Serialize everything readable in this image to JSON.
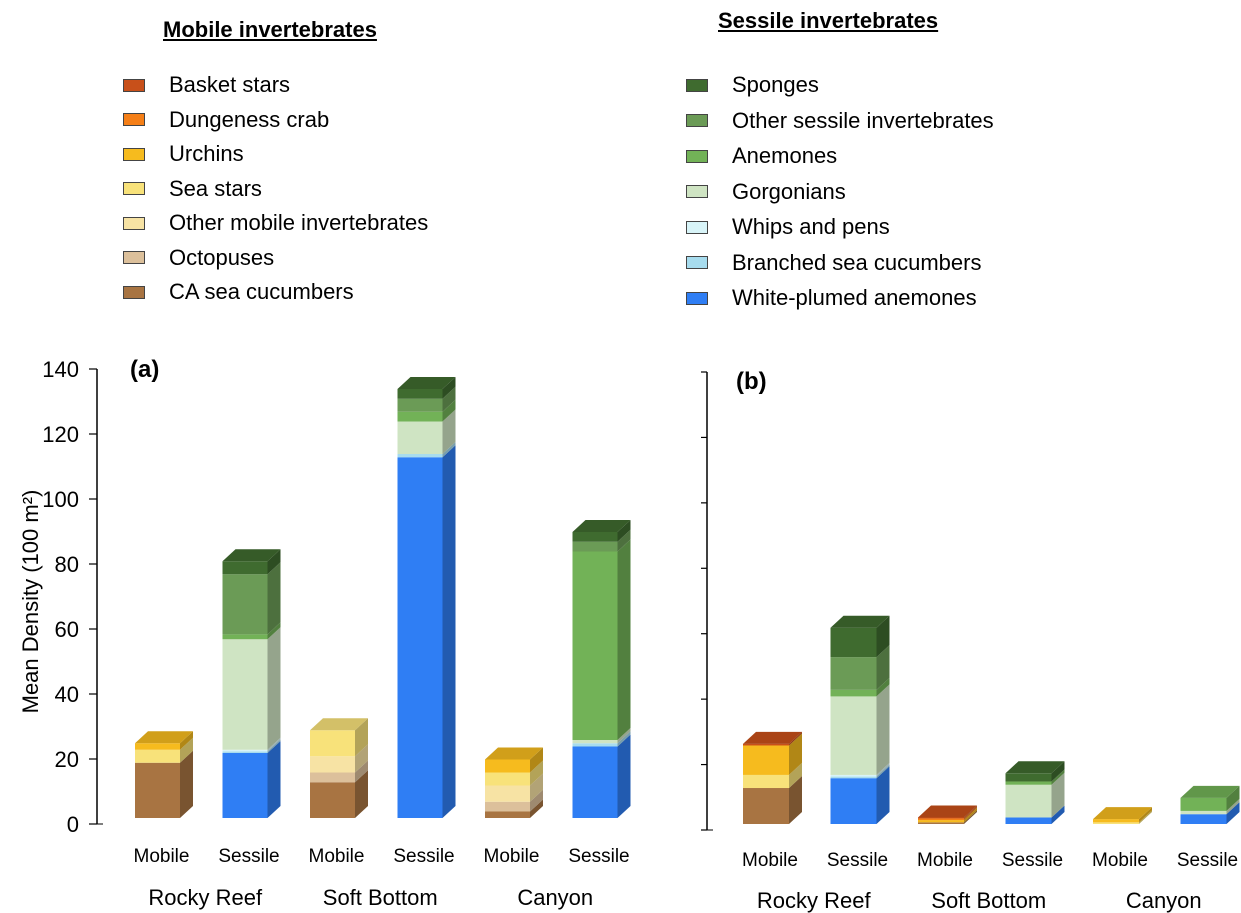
{
  "legends": {
    "mobile": {
      "title": "Mobile invertebrates",
      "items": [
        {
          "label": "Basket stars",
          "color": "#c8501a"
        },
        {
          "label": "Dungeness crab",
          "color": "#f57f17"
        },
        {
          "label": "Urchins",
          "color": "#f6bb1e"
        },
        {
          "label": "Sea stars",
          "color": "#f8e27a"
        },
        {
          "label": "Other mobile invertebrates",
          "color": "#f7e3a4"
        },
        {
          "label": "Octopuses",
          "color": "#dcc09b"
        },
        {
          "label": "CA sea cucumbers",
          "color": "#a87442"
        }
      ]
    },
    "sessile": {
      "title": "Sessile invertebrates",
      "items": [
        {
          "label": "Sponges",
          "color": "#3f6b2f"
        },
        {
          "label": "Other sessile invertebrates",
          "color": "#6b9b56"
        },
        {
          "label": "Anemones",
          "color": "#72b257"
        },
        {
          "label": "Gorgonians",
          "color": "#cfe4c3"
        },
        {
          "label": "Whips and pens",
          "color": "#d8f4f8"
        },
        {
          "label": "Branched sea cucumbers",
          "color": "#a7dcee"
        },
        {
          "label": "White-plumed anemones",
          "color": "#2f7ef4"
        }
      ]
    }
  },
  "chart_data": [
    {
      "type": "bar",
      "stacked": true,
      "panel_label": "(a)",
      "ylabel": "Mean Density (100 m²)",
      "ylim": [
        0,
        140
      ],
      "yticks": [
        0,
        20,
        40,
        60,
        80,
        100,
        120,
        140
      ],
      "show_tick_labels": true,
      "groups": [
        "Rocky Reef",
        "Soft Bottom",
        "Canyon"
      ],
      "bars": [
        {
          "group": "Rocky Reef",
          "label": "Mobile",
          "segments": [
            {
              "name": "CA sea cucumbers",
              "value": 17
            },
            {
              "name": "Sea stars",
              "value": 4
            },
            {
              "name": "Urchins",
              "value": 2
            }
          ]
        },
        {
          "group": "Rocky Reef",
          "label": "Sessile",
          "segments": [
            {
              "name": "White-plumed anemones",
              "value": 20
            },
            {
              "name": "Branched sea cucumbers",
              "value": 0.5
            },
            {
              "name": "Whips and pens",
              "value": 0.5
            },
            {
              "name": "Gorgonians",
              "value": 34
            },
            {
              "name": "Anemones",
              "value": 1.5
            },
            {
              "name": "Other sessile invertebrates",
              "value": 18.5
            },
            {
              "name": "Sponges",
              "value": 4
            }
          ]
        },
        {
          "group": "Soft Bottom",
          "label": "Mobile",
          "segments": [
            {
              "name": "CA sea cucumbers",
              "value": 11
            },
            {
              "name": "Octopuses",
              "value": 3
            },
            {
              "name": "Other mobile invertebrates",
              "value": 5
            },
            {
              "name": "Sea stars",
              "value": 8
            }
          ]
        },
        {
          "group": "Soft Bottom",
          "label": "Sessile",
          "segments": [
            {
              "name": "White-plumed anemones",
              "value": 111
            },
            {
              "name": "Branched sea cucumbers",
              "value": 1
            },
            {
              "name": "Gorgonians",
              "value": 10
            },
            {
              "name": "Anemones",
              "value": 3
            },
            {
              "name": "Other sessile invertebrates",
              "value": 4
            },
            {
              "name": "Sponges",
              "value": 3
            }
          ]
        },
        {
          "group": "Canyon",
          "label": "Mobile",
          "segments": [
            {
              "name": "CA sea cucumbers",
              "value": 2
            },
            {
              "name": "Octopuses",
              "value": 3
            },
            {
              "name": "Other mobile invertebrates",
              "value": 5
            },
            {
              "name": "Sea stars",
              "value": 4
            },
            {
              "name": "Urchins",
              "value": 4
            }
          ]
        },
        {
          "group": "Canyon",
          "label": "Sessile",
          "segments": [
            {
              "name": "White-plumed anemones",
              "value": 22
            },
            {
              "name": "Branched sea cucumbers",
              "value": 1
            },
            {
              "name": "Gorgonians",
              "value": 1
            },
            {
              "name": "Anemones",
              "value": 58
            },
            {
              "name": "Other sessile invertebrates",
              "value": 3
            },
            {
              "name": "Sponges",
              "value": 3
            }
          ]
        }
      ]
    },
    {
      "type": "bar",
      "stacked": true,
      "panel_label": "(b)",
      "ylim": [
        0,
        140
      ],
      "show_tick_labels": false,
      "groups": [
        "Rocky Reef",
        "Soft Bottom",
        "Canyon"
      ],
      "bars": [
        {
          "group": "Rocky Reef",
          "label": "Mobile",
          "segments": [
            {
              "name": "CA sea cucumbers",
              "value": 11
            },
            {
              "name": "Sea stars",
              "value": 4
            },
            {
              "name": "Urchins",
              "value": 9
            },
            {
              "name": "Basket stars",
              "value": 0.5
            }
          ]
        },
        {
          "group": "Rocky Reef",
          "label": "Sessile",
          "segments": [
            {
              "name": "White-plumed anemones",
              "value": 14
            },
            {
              "name": "Branched sea cucumbers",
              "value": 0.5
            },
            {
              "name": "Whips and pens",
              "value": 0.5
            },
            {
              "name": "Gorgonians",
              "value": 24
            },
            {
              "name": "Anemones",
              "value": 2
            },
            {
              "name": "Other sessile invertebrates",
              "value": 10
            },
            {
              "name": "Sponges",
              "value": 9
            }
          ]
        },
        {
          "group": "Soft Bottom",
          "label": "Mobile",
          "segments": [
            {
              "name": "CA sea cucumbers",
              "value": 0.5
            },
            {
              "name": "Urchins",
              "value": 0.7
            },
            {
              "name": "Dungeness crab",
              "value": 0.5
            },
            {
              "name": "Basket stars",
              "value": 0.3
            }
          ]
        },
        {
          "group": "Soft Bottom",
          "label": "Sessile",
          "segments": [
            {
              "name": "White-plumed anemones",
              "value": 2
            },
            {
              "name": "Gorgonians",
              "value": 10
            },
            {
              "name": "Anemones",
              "value": 1
            },
            {
              "name": "Sponges",
              "value": 2.5
            }
          ]
        },
        {
          "group": "Canyon",
          "label": "Mobile",
          "segments": [
            {
              "name": "Sea stars",
              "value": 0.5
            },
            {
              "name": "Urchins",
              "value": 1
            }
          ]
        },
        {
          "group": "Canyon",
          "label": "Sessile",
          "segments": [
            {
              "name": "White-plumed anemones",
              "value": 3
            },
            {
              "name": "Gorgonians",
              "value": 1
            },
            {
              "name": "Anemones",
              "value": 4
            }
          ]
        }
      ]
    }
  ]
}
